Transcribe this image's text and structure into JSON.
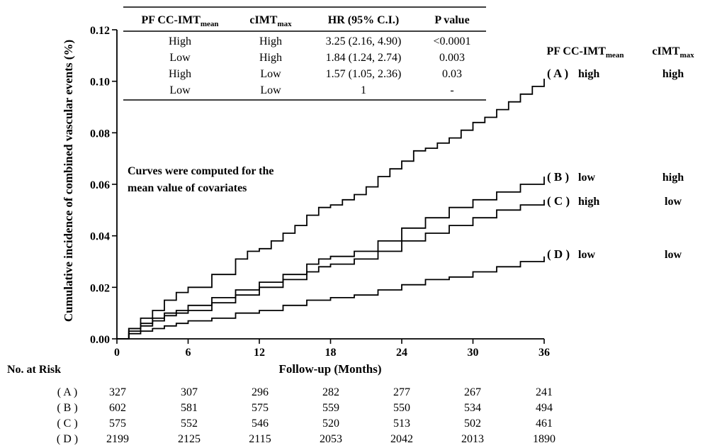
{
  "chart_data": {
    "type": "line",
    "ylabel": "Cumulative incidence of combined vascular events (%)",
    "xlabel": "Follow-up (Months)",
    "xlim": [
      0,
      36
    ],
    "ylim": [
      0,
      0.12
    ],
    "x_ticks": [
      "0",
      "6",
      "12",
      "18",
      "24",
      "30",
      "36"
    ],
    "y_ticks": [
      "0.00",
      "0.02",
      "0.04",
      "0.06",
      "0.08",
      "0.10",
      "0.12"
    ],
    "annotation": [
      "Curves were computed for the",
      "mean value of covariates"
    ],
    "legend_headers": {
      "pf_main": "PF CC-IMT",
      "pf_sub": "mean",
      "cimt_main": "cIMT",
      "cimt_sub": "max"
    },
    "series": [
      {
        "name": "A",
        "label": "( A )",
        "pf": "high",
        "cimt": "high",
        "x": [
          0,
          1,
          2,
          3,
          4,
          5,
          6,
          8,
          10,
          11,
          12,
          13,
          14,
          15,
          16,
          17,
          18,
          19,
          20,
          21,
          22,
          23,
          24,
          25,
          26,
          27,
          28,
          29,
          30,
          31,
          32,
          33,
          34,
          35,
          36
        ],
        "y": [
          0,
          0.004,
          0.008,
          0.011,
          0.015,
          0.018,
          0.02,
          0.025,
          0.031,
          0.034,
          0.035,
          0.038,
          0.041,
          0.044,
          0.048,
          0.051,
          0.052,
          0.054,
          0.056,
          0.059,
          0.063,
          0.066,
          0.069,
          0.073,
          0.074,
          0.076,
          0.078,
          0.081,
          0.084,
          0.086,
          0.089,
          0.092,
          0.095,
          0.098,
          0.101
        ]
      },
      {
        "name": "B",
        "label": "( B )",
        "pf": "low",
        "cimt": "high",
        "x": [
          0,
          1,
          2,
          3,
          4,
          5,
          6,
          8,
          10,
          12,
          14,
          16,
          17,
          18,
          20,
          22,
          24,
          26,
          28,
          30,
          32,
          34,
          36
        ],
        "y": [
          0,
          0.004,
          0.006,
          0.008,
          0.01,
          0.011,
          0.013,
          0.016,
          0.019,
          0.022,
          0.025,
          0.029,
          0.031,
          0.032,
          0.034,
          0.038,
          0.043,
          0.047,
          0.051,
          0.054,
          0.057,
          0.06,
          0.063
        ]
      },
      {
        "name": "C",
        "label": "( C )",
        "pf": "high",
        "cimt": "low",
        "x": [
          0,
          1,
          2,
          3,
          4,
          5,
          6,
          8,
          10,
          12,
          14,
          16,
          17,
          18,
          20,
          22,
          24,
          26,
          28,
          30,
          32,
          34,
          36
        ],
        "y": [
          0,
          0.003,
          0.005,
          0.007,
          0.009,
          0.01,
          0.011,
          0.014,
          0.017,
          0.02,
          0.023,
          0.026,
          0.028,
          0.029,
          0.031,
          0.034,
          0.038,
          0.041,
          0.044,
          0.047,
          0.05,
          0.052,
          0.054
        ]
      },
      {
        "name": "D",
        "label": "( D )",
        "pf": "low",
        "cimt": "low",
        "x": [
          0,
          1,
          2,
          3,
          4,
          5,
          6,
          8,
          10,
          12,
          14,
          16,
          18,
          20,
          22,
          24,
          26,
          28,
          30,
          32,
          34,
          36
        ],
        "y": [
          0,
          0.002,
          0.003,
          0.004,
          0.005,
          0.006,
          0.007,
          0.008,
          0.01,
          0.011,
          0.013,
          0.015,
          0.016,
          0.017,
          0.019,
          0.021,
          0.023,
          0.024,
          0.026,
          0.028,
          0.03,
          0.032
        ]
      }
    ],
    "hr_table": {
      "headers": {
        "pf_main": "PF CC-IMT",
        "pf_sub": "mean",
        "cimt_main": "cIMT",
        "cimt_sub": "max",
        "hr": "HR (95% C.I.)",
        "p": "P value"
      },
      "rows": [
        {
          "pf": "High",
          "cimt": "High",
          "hr": "3.25 (2.16, 4.90)",
          "p": "<0.0001"
        },
        {
          "pf": "Low",
          "cimt": "High",
          "hr": "1.84 (1.24, 2.74)",
          "p": "0.003"
        },
        {
          "pf": "High",
          "cimt": "Low",
          "hr": "1.57 (1.05, 2.36)",
          "p": "0.03"
        },
        {
          "pf": "Low",
          "cimt": "Low",
          "hr": "1",
          "p": "-"
        }
      ]
    },
    "risk_table": {
      "title": "No. at Risk",
      "rows": [
        {
          "label": "( A )",
          "values": [
            "327",
            "307",
            "296",
            "282",
            "277",
            "267",
            "241"
          ]
        },
        {
          "label": "( B )",
          "values": [
            "602",
            "581",
            "575",
            "559",
            "550",
            "534",
            "494"
          ]
        },
        {
          "label": "( C )",
          "values": [
            "575",
            "552",
            "546",
            "520",
            "513",
            "502",
            "461"
          ]
        },
        {
          "label": "( D )",
          "values": [
            "2199",
            "2125",
            "2115",
            "2053",
            "2042",
            "2013",
            "1890"
          ]
        }
      ]
    }
  }
}
